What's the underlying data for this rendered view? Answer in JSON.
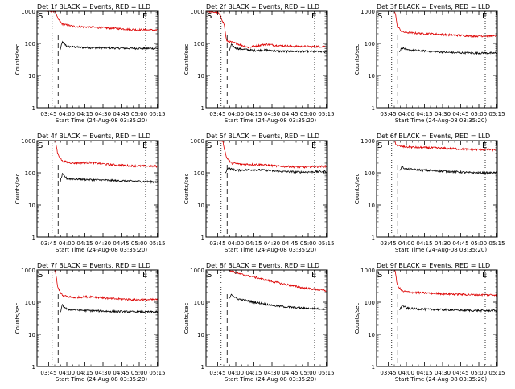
{
  "figure": {
    "title_prefix": "Det",
    "title_suffix": "BLACK = Events, RED = LLD",
    "xlabel": "Start Time (24-Aug-08 03:35:20)",
    "ylabel": "Counts/sec",
    "x_ticks": [
      "03:45",
      "04:00",
      "04:15",
      "04:30",
      "04:45",
      "05:00",
      "05:15"
    ],
    "y_ticks": [
      "1",
      "10",
      "100",
      "1000"
    ],
    "marker_start": "S",
    "marker_end": "E",
    "series_colors": {
      "events": "#000000",
      "lld": "#dd0000"
    }
  },
  "chart_data": [
    {
      "type": "line",
      "title": "Det 1f BLACK = Events, RED = LLD",
      "scale": "log",
      "ylim": [
        1,
        1000
      ],
      "x_unit": "minutes after 03:35:20",
      "markers": {
        "start": 12.5,
        "dash": 17.5,
        "end": 90.0
      },
      "series": [
        {
          "name": "Events",
          "values": [
            [
              19,
              60
            ],
            [
              21,
              110
            ],
            [
              25,
              80
            ],
            [
              40,
              74
            ],
            [
              60,
              72
            ],
            [
              80,
              70
            ],
            [
              99,
              70
            ]
          ]
        },
        {
          "name": "LLD",
          "values": [
            [
              8,
              1000
            ],
            [
              15,
              1000
            ],
            [
              17,
              600
            ],
            [
              21,
              400
            ],
            [
              30,
              340
            ],
            [
              45,
              320
            ],
            [
              60,
              300
            ],
            [
              80,
              270
            ],
            [
              99,
              260
            ]
          ]
        }
      ]
    },
    {
      "type": "line",
      "title": "Det 2f BLACK = Events, RED = LLD",
      "scale": "log",
      "ylim": [
        1,
        1000
      ],
      "x_unit": "minutes after 03:35:20",
      "markers": {
        "start": 12.5,
        "dash": 17.5,
        "end": 90.0
      },
      "series": [
        {
          "name": "Events",
          "values": [
            [
              19,
              55
            ],
            [
              21,
              90
            ],
            [
              25,
              70
            ],
            [
              40,
              60
            ],
            [
              50,
              62
            ],
            [
              60,
              57
            ],
            [
              80,
              56
            ],
            [
              99,
              55
            ]
          ]
        },
        {
          "name": "LLD",
          "values": [
            [
              0,
              1000
            ],
            [
              10,
              900
            ],
            [
              12,
              700
            ],
            [
              15,
              400
            ],
            [
              17,
              120
            ],
            [
              25,
              100
            ],
            [
              35,
              75
            ],
            [
              50,
              95
            ],
            [
              60,
              85
            ],
            [
              80,
              80
            ],
            [
              99,
              80
            ]
          ]
        }
      ]
    },
    {
      "type": "line",
      "title": "Det 3f BLACK = Events, RED = LLD",
      "scale": "log",
      "ylim": [
        1,
        1000
      ],
      "x_unit": "minutes after 03:35:20",
      "markers": {
        "start": 12.5,
        "dash": 17.5,
        "end": 90.0
      },
      "series": [
        {
          "name": "Events",
          "values": [
            [
              19,
              55
            ],
            [
              21,
              75
            ],
            [
              25,
              62
            ],
            [
              40,
              58
            ],
            [
              60,
              52
            ],
            [
              80,
              50
            ],
            [
              99,
              50
            ]
          ]
        },
        {
          "name": "LLD",
          "values": [
            [
              15,
              1000
            ],
            [
              16,
              700
            ],
            [
              17,
              350
            ],
            [
              21,
              230
            ],
            [
              30,
              210
            ],
            [
              45,
              200
            ],
            [
              60,
              185
            ],
            [
              80,
              170
            ],
            [
              99,
              170
            ]
          ]
        }
      ]
    },
    {
      "type": "line",
      "title": "Det 4f BLACK = Events, RED = LLD",
      "scale": "log",
      "ylim": [
        1,
        1000
      ],
      "x_unit": "minutes after 03:35:20",
      "markers": {
        "start": 12.5,
        "dash": 17.5,
        "end": 90.0
      },
      "series": [
        {
          "name": "Events",
          "values": [
            [
              19,
              50
            ],
            [
              21,
              90
            ],
            [
              25,
              65
            ],
            [
              40,
              62
            ],
            [
              60,
              58
            ],
            [
              80,
              55
            ],
            [
              99,
              52
            ]
          ]
        },
        {
          "name": "LLD",
          "values": [
            [
              15,
              1000
            ],
            [
              16,
              700
            ],
            [
              17,
              400
            ],
            [
              21,
              230
            ],
            [
              30,
              200
            ],
            [
              45,
              210
            ],
            [
              60,
              180
            ],
            [
              80,
              165
            ],
            [
              99,
              160
            ]
          ]
        }
      ]
    },
    {
      "type": "line",
      "title": "Det 5f BLACK = Events, RED = LLD",
      "scale": "log",
      "ylim": [
        1,
        1000
      ],
      "x_unit": "minutes after 03:35:20",
      "markers": {
        "start": 12.5,
        "dash": 17.5,
        "end": 90.0
      },
      "series": [
        {
          "name": "Events",
          "values": [
            [
              16,
              100
            ],
            [
              18,
              140
            ],
            [
              25,
              120
            ],
            [
              40,
              125
            ],
            [
              50,
              120
            ],
            [
              60,
              110
            ],
            [
              80,
              105
            ],
            [
              99,
              110
            ]
          ]
        },
        {
          "name": "LLD",
          "values": [
            [
              8,
              1000
            ],
            [
              14,
              1000
            ],
            [
              15,
              600
            ],
            [
              17,
              300
            ],
            [
              21,
              200
            ],
            [
              30,
              185
            ],
            [
              45,
              180
            ],
            [
              60,
              160
            ],
            [
              80,
              150
            ],
            [
              99,
              160
            ]
          ]
        }
      ]
    },
    {
      "type": "line",
      "title": "Det 6f BLACK = Events, RED = LLD",
      "scale": "log",
      "ylim": [
        1,
        1000
      ],
      "x_unit": "minutes after 03:35:20",
      "markers": {
        "start": 12.5,
        "dash": 17.5,
        "end": 90.0
      },
      "series": [
        {
          "name": "Events",
          "values": [
            [
              19,
              120
            ],
            [
              21,
              150
            ],
            [
              25,
              130
            ],
            [
              40,
              120
            ],
            [
              60,
              110
            ],
            [
              80,
              100
            ],
            [
              99,
              100
            ]
          ]
        },
        {
          "name": "LLD",
          "values": [
            [
              15,
              1000
            ],
            [
              16,
              800
            ],
            [
              17,
              700
            ],
            [
              21,
              650
            ],
            [
              30,
              620
            ],
            [
              45,
              600
            ],
            [
              60,
              570
            ],
            [
              80,
              530
            ],
            [
              99,
              520
            ]
          ]
        }
      ]
    },
    {
      "type": "line",
      "title": "Det 7f BLACK = Events, RED = LLD",
      "scale": "log",
      "ylim": [
        1,
        1000
      ],
      "x_unit": "minutes after 03:35:20",
      "markers": {
        "start": 12.5,
        "dash": 17.5,
        "end": 90.0
      },
      "series": [
        {
          "name": "Events",
          "values": [
            [
              19,
              45
            ],
            [
              21,
              80
            ],
            [
              25,
              60
            ],
            [
              40,
              55
            ],
            [
              60,
              52
            ],
            [
              80,
              50
            ],
            [
              99,
              50
            ]
          ]
        },
        {
          "name": "LLD",
          "values": [
            [
              15,
              1000
            ],
            [
              16,
              600
            ],
            [
              17,
              300
            ],
            [
              21,
              160
            ],
            [
              30,
              140
            ],
            [
              45,
              150
            ],
            [
              60,
              130
            ],
            [
              80,
              120
            ],
            [
              99,
              120
            ]
          ]
        }
      ]
    },
    {
      "type": "line",
      "title": "Det 8f BLACK = Events, RED = LLD",
      "scale": "log",
      "ylim": [
        1,
        1000
      ],
      "x_unit": "minutes after 03:35:20",
      "markers": {
        "start": 12.5,
        "dash": 17.5,
        "end": 90.0
      },
      "series": [
        {
          "name": "Events",
          "values": [
            [
              19,
              120
            ],
            [
              21,
              180
            ],
            [
              25,
              130
            ],
            [
              40,
              100
            ],
            [
              60,
              75
            ],
            [
              80,
              65
            ],
            [
              99,
              62
            ]
          ]
        },
        {
          "name": "LLD",
          "values": [
            [
              19,
              1000
            ],
            [
              25,
              800
            ],
            [
              40,
              600
            ],
            [
              60,
              400
            ],
            [
              80,
              280
            ],
            [
              99,
              230
            ]
          ]
        }
      ]
    },
    {
      "type": "line",
      "title": "Det 9f BLACK = Events, RED = LLD",
      "scale": "log",
      "ylim": [
        1,
        1000
      ],
      "x_unit": "minutes after 03:35:20",
      "markers": {
        "start": 12.5,
        "dash": 17.5,
        "end": 90.0
      },
      "series": [
        {
          "name": "Events",
          "values": [
            [
              19,
              55
            ],
            [
              21,
              80
            ],
            [
              25,
              65
            ],
            [
              40,
              60
            ],
            [
              60,
              58
            ],
            [
              80,
              55
            ],
            [
              99,
              55
            ]
          ]
        },
        {
          "name": "LLD",
          "values": [
            [
              15,
              1000
            ],
            [
              16,
              700
            ],
            [
              17,
              350
            ],
            [
              21,
              220
            ],
            [
              30,
              200
            ],
            [
              45,
              190
            ],
            [
              60,
              180
            ],
            [
              80,
              170
            ],
            [
              99,
              170
            ]
          ]
        }
      ]
    }
  ],
  "panels": [
    {
      "title": "Det 1f BLACK = Events, RED = LLD"
    },
    {
      "title": "Det 2f BLACK = Events, RED = LLD"
    },
    {
      "title": "Det 3f BLACK = Events, RED = LLD"
    },
    {
      "title": "Det 4f BLACK = Events, RED = LLD"
    },
    {
      "title": "Det 5f BLACK = Events, RED = LLD"
    },
    {
      "title": "Det 6f BLACK = Events, RED = LLD"
    },
    {
      "title": "Det 7f BLACK = Events, RED = LLD"
    },
    {
      "title": "Det 8f BLACK = Events, RED = LLD"
    },
    {
      "title": "Det 9f BLACK = Events, RED = LLD"
    }
  ]
}
